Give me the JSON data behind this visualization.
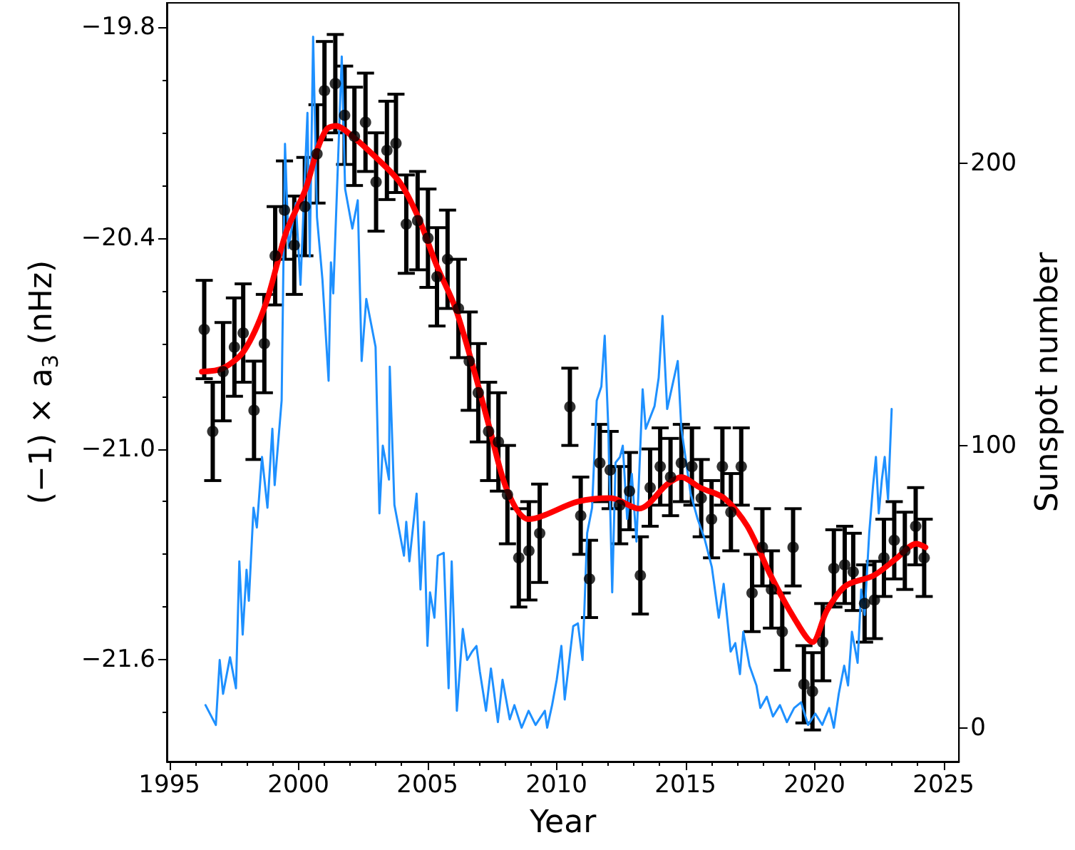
{
  "chart_data": {
    "type": "line",
    "xlabel": "Year",
    "ylabel": "(−1) × a$_{3}$ (nHz)",
    "y2label": "Sunspot number",
    "grid": false,
    "xlim": [
      1994.9,
      2025.6
    ],
    "xticks": [
      1995,
      {
        "value": 1996,
        "label": null
      },
      {
        "value": 1997,
        "label": null
      },
      {
        "value": 1998,
        "label": null
      },
      {
        "value": 1999,
        "label": null
      },
      2000,
      {
        "value": 2001,
        "label": null
      },
      {
        "value": 2002,
        "label": null
      },
      {
        "value": 2003,
        "label": null
      },
      {
        "value": 2004,
        "label": null
      },
      2005,
      {
        "value": 2006,
        "label": null
      },
      {
        "value": 2007,
        "label": null
      },
      {
        "value": 2008,
        "label": null
      },
      {
        "value": 2009,
        "label": null
      },
      2010,
      {
        "value": 2011,
        "label": null
      },
      {
        "value": 2012,
        "label": null
      },
      {
        "value": 2013,
        "label": null
      },
      {
        "value": 2014,
        "label": null
      },
      2015,
      {
        "value": 2016,
        "label": null
      },
      {
        "value": 2017,
        "label": null
      },
      {
        "value": 2018,
        "label": null
      },
      {
        "value": 2019,
        "label": null
      },
      2020,
      {
        "value": 2021,
        "label": null
      },
      {
        "value": 2022,
        "label": null
      },
      {
        "value": 2023,
        "label": null
      },
      {
        "value": 2024,
        "label": null
      },
      2025
    ],
    "ylim": [
      -21.89,
      -19.73
    ],
    "yticks": [
      {
        "value": -19.8,
        "label": "−19.8"
      },
      {
        "value": -19.95,
        "label": null
      },
      {
        "value": -20.1,
        "label": null
      },
      {
        "value": -20.25,
        "label": null
      },
      {
        "value": -20.4,
        "label": "−20.4"
      },
      {
        "value": -20.55,
        "label": null
      },
      {
        "value": -20.7,
        "label": null
      },
      {
        "value": -20.85,
        "label": null
      },
      {
        "value": -21.0,
        "label": "−21.0"
      },
      {
        "value": -21.15,
        "label": null
      },
      {
        "value": -21.3,
        "label": null
      },
      {
        "value": -21.45,
        "label": null
      },
      {
        "value": -21.6,
        "label": "−21.6"
      },
      {
        "value": -21.75,
        "label": null
      }
    ],
    "y2lim": [
      -12,
      257
    ],
    "y2ticks": [
      0,
      100,
      200
    ],
    "series": [
      {
        "type": "line",
        "axis": "y2",
        "color": "#1e90ff",
        "marker": "none",
        "x": [
          1996.4,
          1996.8,
          1996.95,
          1997.08,
          1997.35,
          1997.58,
          1997.71,
          1997.84,
          1997.99,
          1998.08,
          1998.26,
          1998.39,
          1998.59,
          1998.8,
          1998.99,
          1999.08,
          1999.35,
          1999.48,
          1999.62,
          1999.9,
          2000.08,
          2000.35,
          2000.44,
          2000.57,
          2000.72,
          2000.93,
          2001.17,
          2001.26,
          2001.35,
          2001.54,
          2001.68,
          2001.81,
          2002.09,
          2002.3,
          2002.45,
          2002.63,
          2002.99,
          2003.14,
          2003.27,
          2003.51,
          2003.54,
          2003.72,
          2004.09,
          2004.18,
          2004.3,
          2004.58,
          2004.73,
          2004.87,
          2005.0,
          2005.1,
          2005.27,
          2005.4,
          2005.63,
          2005.82,
          2005.94,
          2006.14,
          2006.37,
          2006.54,
          2006.73,
          2006.9,
          2007.03,
          2007.27,
          2007.46,
          2007.73,
          2007.91,
          2008.19,
          2008.37,
          2008.65,
          2008.92,
          2009.19,
          2009.55,
          2009.64,
          2009.83,
          2010.01,
          2010.19,
          2010.32,
          2010.65,
          2010.83,
          2011.01,
          2011.19,
          2011.38,
          2011.56,
          2011.74,
          2011.87,
          2012.01,
          2012.16,
          2012.29,
          2012.46,
          2012.57,
          2012.74,
          2012.92,
          2013.1,
          2013.34,
          2013.46,
          2013.8,
          2013.96,
          2014.11,
          2014.29,
          2014.7,
          2014.84,
          2015.2,
          2015.47,
          2015.74,
          2016.02,
          2016.29,
          2016.48,
          2016.75,
          2016.93,
          2017.11,
          2017.24,
          2017.48,
          2017.75,
          2017.9,
          2018.15,
          2018.39,
          2018.66,
          2018.93,
          2019.21,
          2019.48,
          2019.75,
          2020.03,
          2020.3,
          2020.57,
          2020.75,
          2020.94,
          2021.15,
          2021.3,
          2021.45,
          2021.67,
          2021.81,
          2021.94,
          2022.12,
          2022.27,
          2022.38,
          2022.49,
          2022.61,
          2022.72,
          2022.85,
          2022.99
        ],
        "values": [
          8,
          1,
          24,
          12,
          25,
          14,
          59,
          33,
          56,
          45,
          78,
          71,
          96,
          78,
          106,
          86,
          116,
          207,
          170,
          186,
          157,
          218,
          167,
          245,
          181,
          159,
          123,
          165,
          154,
          202,
          238,
          191,
          177,
          187,
          130,
          152,
          135,
          76,
          100,
          88,
          128,
          79,
          61,
          73,
          59,
          83,
          49,
          73,
          29,
          48,
          39,
          61,
          62,
          14,
          59,
          6,
          35,
          24,
          27,
          29,
          20,
          6,
          21,
          2,
          17,
          3,
          8,
          0,
          6,
          1,
          6,
          0,
          8,
          17,
          29,
          10,
          36,
          37,
          24,
          69,
          78,
          116,
          121,
          139,
          106,
          48,
          94,
          96,
          100,
          74,
          90,
          66,
          120,
          106,
          114,
          124,
          146,
          113,
          130,
          106,
          83,
          74,
          67,
          57,
          39,
          51,
          27,
          30,
          19,
          34,
          22,
          15,
          7,
          11,
          4,
          8,
          2,
          7,
          9,
          1,
          5,
          1,
          7,
          0,
          12,
          22,
          15,
          34,
          23,
          49,
          40,
          69,
          86,
          96,
          76,
          88,
          96,
          81,
          113
        ]
      },
      {
        "type": "scatter",
        "color": "#000000",
        "marker": "circle",
        "x": [
          1996.35,
          1996.68,
          1997.08,
          1997.52,
          1997.86,
          1998.28,
          1998.68,
          1999.1,
          1999.46,
          1999.84,
          2000.25,
          2000.72,
          2001.01,
          2001.43,
          2001.79,
          2002.17,
          2002.6,
          2003.01,
          2003.43,
          2003.78,
          2004.18,
          2004.62,
          2005.02,
          2005.37,
          2005.78,
          2006.2,
          2006.62,
          2006.97,
          2007.37,
          2007.75,
          2008.1,
          2008.54,
          2008.93,
          2009.35,
          2010.52,
          2010.94,
          2011.28,
          2011.68,
          2012.08,
          2012.45,
          2012.83,
          2013.25,
          2013.63,
          2014.02,
          2014.42,
          2014.84,
          2015.25,
          2015.61,
          2016.01,
          2016.43,
          2016.76,
          2017.16,
          2017.58,
          2017.98,
          2018.33,
          2018.75,
          2019.17,
          2019.59,
          2019.92,
          2020.32,
          2020.75,
          2021.17,
          2021.5,
          2021.94,
          2022.32,
          2022.69,
          2023.09,
          2023.5,
          2023.92,
          2024.25
        ],
        "values": [
          -20.66,
          -20.95,
          -20.78,
          -20.71,
          -20.67,
          -20.89,
          -20.7,
          -20.45,
          -20.32,
          -20.42,
          -20.31,
          -20.16,
          -19.98,
          -19.96,
          -20.05,
          -20.11,
          -20.07,
          -20.24,
          -20.15,
          -20.13,
          -20.36,
          -20.35,
          -20.4,
          -20.51,
          -20.46,
          -20.6,
          -20.75,
          -20.84,
          -20.95,
          -20.98,
          -21.13,
          -21.31,
          -21.29,
          -21.24,
          -20.88,
          -21.19,
          -21.37,
          -21.04,
          -21.06,
          -21.16,
          -21.12,
          -21.36,
          -21.11,
          -21.05,
          -21.08,
          -21.04,
          -21.05,
          -21.14,
          -21.2,
          -21.05,
          -21.18,
          -21.05,
          -21.41,
          -21.28,
          -21.4,
          -21.52,
          -21.28,
          -21.67,
          -21.69,
          -21.55,
          -21.34,
          -21.33,
          -21.35,
          -21.44,
          -21.43,
          -21.31,
          -21.26,
          -21.29,
          -21.22,
          -21.31
        ],
        "errors": [
          0.14,
          0.14,
          0.14,
          0.14,
          0.14,
          0.14,
          0.14,
          0.14,
          0.14,
          0.14,
          0.14,
          0.14,
          0.14,
          0.14,
          0.14,
          0.14,
          0.14,
          0.14,
          0.14,
          0.14,
          0.14,
          0.14,
          0.14,
          0.14,
          0.14,
          0.14,
          0.14,
          0.14,
          0.14,
          0.14,
          0.14,
          0.14,
          0.14,
          0.14,
          0.11,
          0.11,
          0.11,
          0.11,
          0.11,
          0.11,
          0.11,
          0.11,
          0.11,
          0.11,
          0.11,
          0.11,
          0.11,
          0.11,
          0.11,
          0.11,
          0.11,
          0.11,
          0.11,
          0.11,
          0.11,
          0.11,
          0.11,
          0.11,
          0.11,
          0.11,
          0.11,
          0.11,
          0.11,
          0.11,
          0.11,
          0.11,
          0.11,
          0.11,
          0.11,
          0.11
        ]
      },
      {
        "type": "line",
        "color": "#ff0000",
        "marker": "none",
        "x": [
          1996.26,
          1997.08,
          1997.9,
          1998.72,
          1999.54,
          2000.28,
          2000.72,
          2001.09,
          2001.45,
          2002.09,
          2003.0,
          2003.92,
          2004.64,
          2005.37,
          2006.09,
          2006.82,
          2007.37,
          2008.1,
          2008.92,
          2010.83,
          2012.1,
          2013.2,
          2014.3,
          2014.84,
          2015.56,
          2016.5,
          2017.4,
          2018.3,
          2019.2,
          2019.92,
          2020.48,
          2021.2,
          2022.3,
          2023.2,
          2023.94,
          2024.3
        ],
        "values": [
          -20.78,
          -20.77,
          -20.72,
          -20.59,
          -20.38,
          -20.26,
          -20.15,
          -20.09,
          -20.08,
          -20.11,
          -20.17,
          -20.24,
          -20.34,
          -20.48,
          -20.6,
          -20.78,
          -20.93,
          -21.12,
          -21.2,
          -21.15,
          -21.14,
          -21.17,
          -21.1,
          -21.08,
          -21.11,
          -21.14,
          -21.22,
          -21.36,
          -21.48,
          -21.55,
          -21.46,
          -21.39,
          -21.36,
          -21.31,
          -21.27,
          -21.28
        ]
      }
    ]
  }
}
